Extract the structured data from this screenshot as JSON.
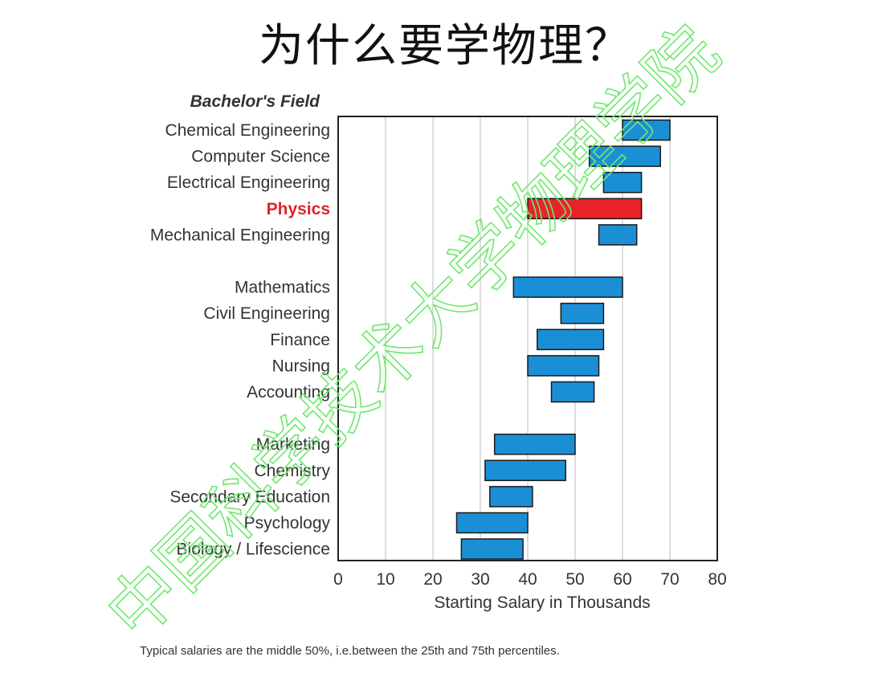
{
  "page": {
    "title": "为什么要学物理？",
    "footnote": "Typical salaries are the middle 50%, i.e.between the 25th and 75th percentiles.",
    "watermark": "中国科学技术大学物理学院"
  },
  "colors": {
    "bar_fill": "#1b8fd6",
    "highlight_fill": "#e8242a",
    "highlight_text": "#e0242a",
    "grid": "#bbbbbb",
    "watermark": "#6fe86f"
  },
  "chart_data": {
    "type": "bar",
    "orientation": "horizontal",
    "category_heading": "Bachelor's Field",
    "xlabel": "Starting Salary in Thousands",
    "xlim": [
      0,
      80
    ],
    "xticks": [
      0,
      10,
      20,
      30,
      40,
      50,
      60,
      70,
      80
    ],
    "grid": "vertical",
    "highlight": "Physics",
    "groups": [
      [
        {
          "name": "Chemical Engineering",
          "low": 60,
          "high": 70
        },
        {
          "name": "Computer Science",
          "low": 53,
          "high": 68
        },
        {
          "name": "Electrical Engineering",
          "low": 56,
          "high": 64
        },
        {
          "name": "Physics",
          "low": 40,
          "high": 64
        },
        {
          "name": "Mechanical Engineering",
          "low": 55,
          "high": 63
        }
      ],
      [
        {
          "name": "Mathematics",
          "low": 37,
          "high": 60
        },
        {
          "name": "Civil Engineering",
          "low": 47,
          "high": 56
        },
        {
          "name": "Finance",
          "low": 42,
          "high": 56
        },
        {
          "name": "Nursing",
          "low": 40,
          "high": 55
        },
        {
          "name": "Accounting",
          "low": 45,
          "high": 54
        }
      ],
      [
        {
          "name": "Marketing",
          "low": 33,
          "high": 50
        },
        {
          "name": "Chemistry",
          "low": 31,
          "high": 48
        },
        {
          "name": "Secondary Education",
          "low": 32,
          "high": 41
        },
        {
          "name": "Psychology",
          "low": 25,
          "high": 40
        },
        {
          "name": "Biology / Lifescience",
          "low": 26,
          "high": 39
        }
      ]
    ]
  }
}
